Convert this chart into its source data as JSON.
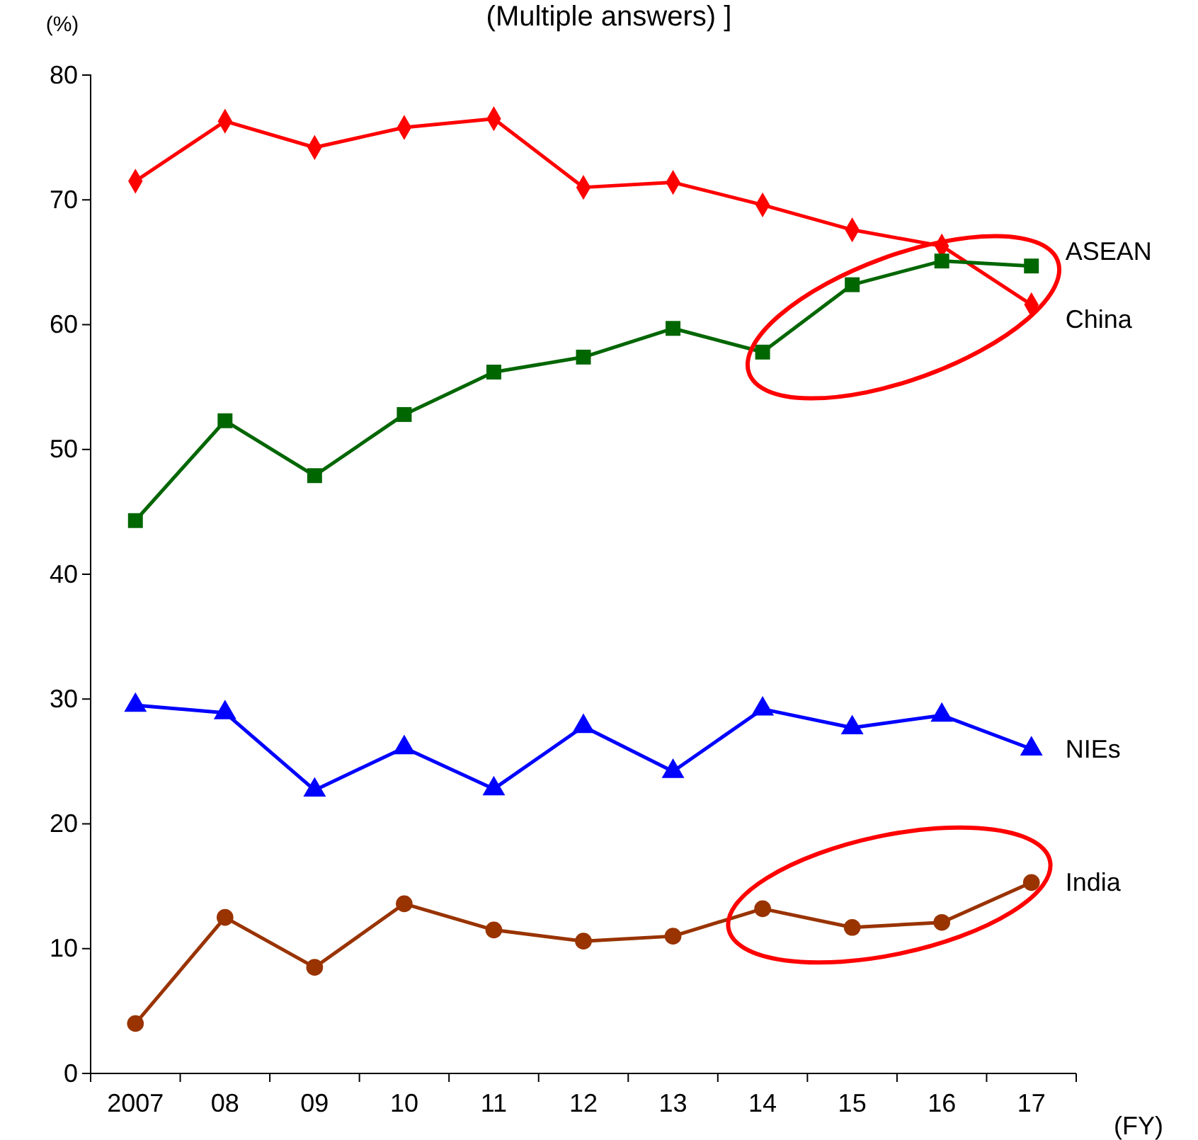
{
  "chart_data": {
    "type": "line",
    "title": "(Multiple answers) ]",
    "ylabel": "(%)",
    "xlabel": "(FY)",
    "categories": [
      "2007",
      "08",
      "09",
      "10",
      "11",
      "12",
      "13",
      "14",
      "15",
      "16",
      "17"
    ],
    "ylim": [
      0,
      80
    ],
    "yticks": [
      0,
      10,
      20,
      30,
      40,
      50,
      60,
      70,
      80
    ],
    "grid": false,
    "series": [
      {
        "name": "China",
        "color": "#ff0000",
        "marker": "diamond",
        "values": [
          71.5,
          76.3,
          74.2,
          75.8,
          76.5,
          71.0,
          71.4,
          69.6,
          67.6,
          66.3,
          61.6
        ]
      },
      {
        "name": "ASEAN",
        "color": "#006600",
        "marker": "square",
        "values": [
          44.3,
          52.3,
          47.9,
          52.8,
          56.2,
          57.4,
          59.7,
          57.8,
          63.2,
          65.1,
          64.7
        ]
      },
      {
        "name": "NIEs",
        "color": "#0000ff",
        "marker": "triangle",
        "values": [
          29.5,
          28.9,
          22.7,
          26.1,
          22.8,
          27.8,
          24.2,
          29.2,
          27.7,
          28.7,
          26.0
        ]
      },
      {
        "name": "India",
        "color": "#993300",
        "marker": "circle",
        "values": [
          4.0,
          12.5,
          8.5,
          13.6,
          11.5,
          10.6,
          11.0,
          13.2,
          11.7,
          12.1,
          15.3
        ]
      }
    ]
  }
}
